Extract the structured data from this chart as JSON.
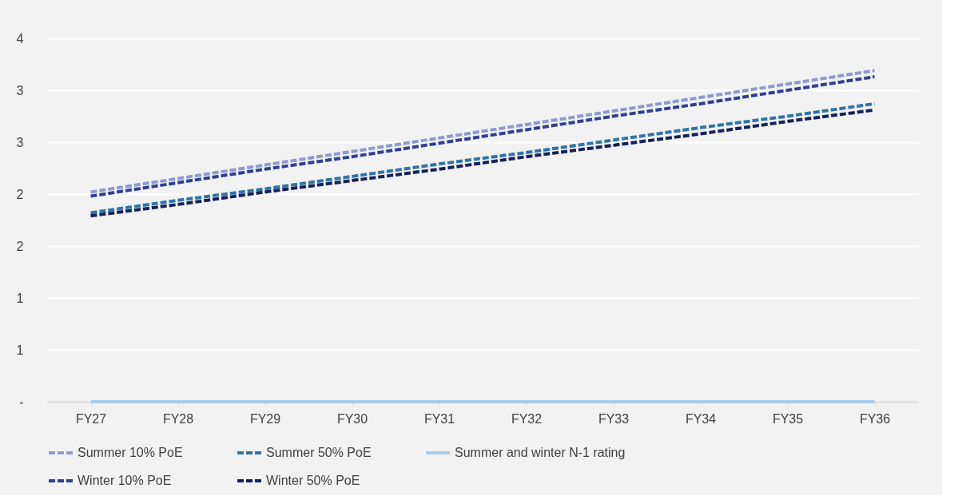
{
  "chart_data": {
    "type": "line",
    "categories": [
      "FY27",
      "FY28",
      "FY29",
      "FY30",
      "FY31",
      "FY32",
      "FY33",
      "FY34",
      "FY35",
      "FY36"
    ],
    "series": [
      {
        "name": "Summer 10% PoE",
        "color": "#8e9ad0",
        "line_style": "dashed",
        "values": [
          2.02,
          2.15,
          2.28,
          2.41,
          2.54,
          2.67,
          2.8,
          2.93,
          3.06,
          3.19
        ]
      },
      {
        "name": "Summer 50% PoE",
        "color": "#2e75a8",
        "line_style": "dashed",
        "values": [
          1.82,
          1.94,
          2.05,
          2.17,
          2.29,
          2.4,
          2.52,
          2.64,
          2.75,
          2.87
        ]
      },
      {
        "name": "Summer and winter N-1 rating",
        "color": "#a9cce8",
        "line_style": "solid",
        "values": [
          0,
          0,
          0,
          0,
          0,
          0,
          0,
          0,
          0,
          0
        ]
      },
      {
        "name": "Winter 10% PoE",
        "color": "#2e3f94",
        "line_style": "dashed",
        "values": [
          1.98,
          2.11,
          2.24,
          2.36,
          2.49,
          2.62,
          2.75,
          2.87,
          3.0,
          3.13
        ]
      },
      {
        "name": "Winter 50% PoE",
        "color": "#14215a",
        "line_style": "dashed",
        "values": [
          1.79,
          1.9,
          2.02,
          2.13,
          2.24,
          2.36,
          2.47,
          2.58,
          2.7,
          2.81
        ]
      }
    ],
    "ylim": [
      0,
      3.5
    ],
    "yticks": [
      {
        "value": 0,
        "label": "-"
      },
      {
        "value": 0.5,
        "label": "1"
      },
      {
        "value": 1,
        "label": "1"
      },
      {
        "value": 1.5,
        "label": "2"
      },
      {
        "value": 2,
        "label": "2"
      },
      {
        "value": 2.5,
        "label": "3"
      },
      {
        "value": 3,
        "label": "3"
      },
      {
        "value": 3.5,
        "label": "4"
      }
    ],
    "grid": "y",
    "legend": "bottom",
    "marker": "none"
  }
}
